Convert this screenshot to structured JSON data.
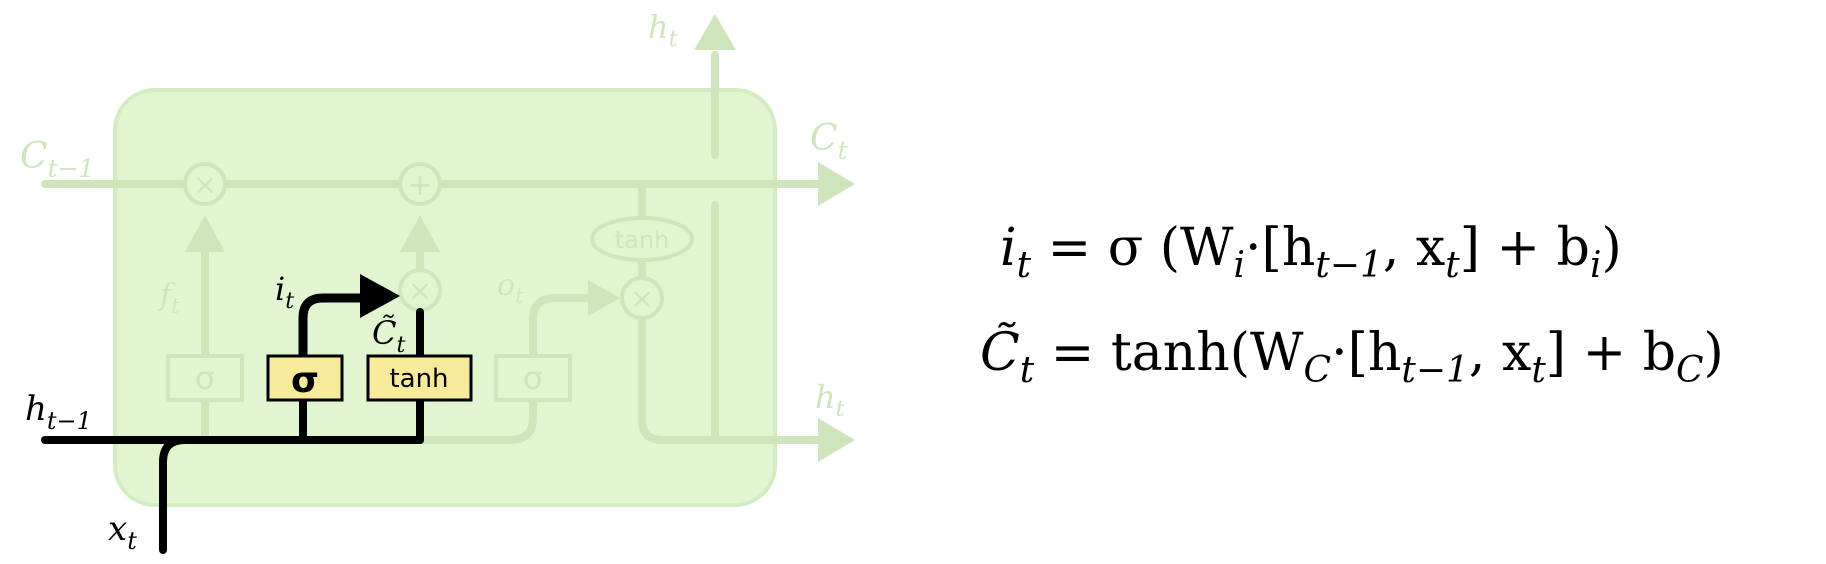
{
  "diagram": {
    "cell_labels": {
      "c_prev": [
        "C",
        "t−1"
      ],
      "c_out": [
        "C",
        "t"
      ],
      "h_top": [
        "h",
        "t"
      ],
      "h_right": [
        "h",
        "t"
      ],
      "h_prev": [
        "h",
        "t−1"
      ],
      "x_in": [
        "x",
        "t"
      ],
      "f_t": [
        "f",
        "t"
      ],
      "i_t": [
        "i",
        "t"
      ],
      "o_t": [
        "o",
        "t"
      ],
      "c_tilde": [
        "C̃",
        "t"
      ]
    },
    "gates": {
      "forget_sigma": "σ",
      "input_sigma": "σ",
      "candidate_tanh": "tanh",
      "output_sigma": "σ",
      "state_tanh": "tanh"
    },
    "ops": {
      "multiply": "×",
      "add": "+"
    }
  },
  "equations": [
    {
      "parts": [
        "i",
        "t",
        " = σ (W",
        "i",
        "·[h",
        "t−1",
        ", x",
        "t",
        "]  +  b",
        "i",
        ")"
      ]
    },
    {
      "parts": [
        "C̃",
        "t",
        " = tanh(W",
        "C",
        "·[h",
        "t−1",
        ", x",
        "t",
        "]  +  b",
        "C",
        ")"
      ]
    }
  ],
  "colors": {
    "cell_background": "#e0f5d0",
    "faded": "#cfe6bd",
    "highlight_gate": "#f7eb9a",
    "active_line": "#000000"
  }
}
